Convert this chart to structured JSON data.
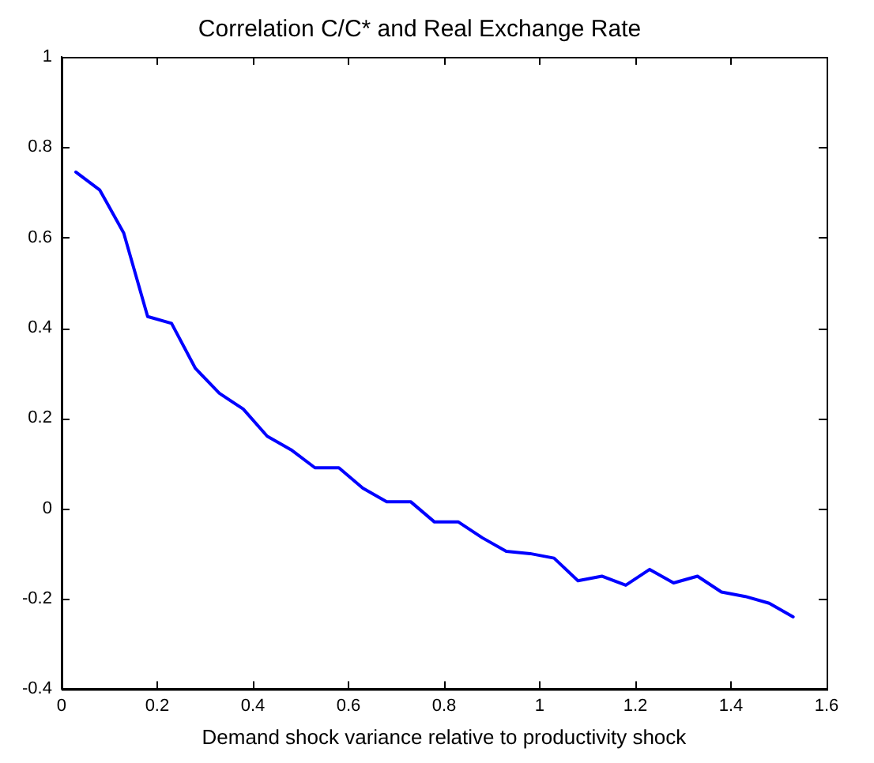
{
  "chart_data": {
    "type": "line",
    "title": "Correlation C/C* and Real Exchange Rate",
    "xlabel": "Demand shock variance relative to productivity shock",
    "x": [
      0.03,
      0.08,
      0.13,
      0.18,
      0.23,
      0.28,
      0.33,
      0.38,
      0.43,
      0.48,
      0.53,
      0.58,
      0.63,
      0.68,
      0.73,
      0.78,
      0.83,
      0.88,
      0.93,
      0.98,
      1.03,
      1.08,
      1.13,
      1.18,
      1.23,
      1.28,
      1.33,
      1.38,
      1.43,
      1.48,
      1.53
    ],
    "series": [
      {
        "color": "#0000ff",
        "values": [
          0.745,
          0.705,
          0.61,
          0.425,
          0.41,
          0.31,
          0.255,
          0.22,
          0.16,
          0.13,
          0.09,
          0.09,
          0.045,
          0.015,
          0.015,
          -0.03,
          -0.03,
          -0.065,
          -0.095,
          -0.1,
          -0.11,
          -0.16,
          -0.15,
          -0.17,
          -0.135,
          -0.165,
          -0.15,
          -0.185,
          -0.195,
          -0.21,
          -0.24
        ]
      }
    ],
    "xlim": [
      0,
      1.6
    ],
    "xticks": [
      0,
      0.2,
      0.4,
      0.6,
      0.8,
      1,
      1.2,
      1.4,
      1.6
    ],
    "ylim": [
      -0.4,
      1
    ],
    "yticks": [
      -0.4,
      -0.2,
      0,
      0.2,
      0.4,
      0.6,
      0.8,
      1
    ],
    "grid": false,
    "legend": false,
    "marker": "none",
    "line_style": "solid"
  }
}
